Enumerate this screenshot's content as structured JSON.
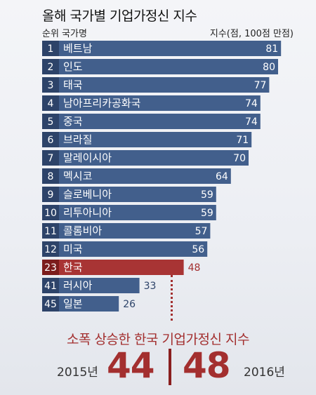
{
  "title": "올해 국가별 기업가정신 지수",
  "header": {
    "left": "순위 국가명",
    "right": "지수(점, 100점 만점)"
  },
  "colors": {
    "bar_default": "#425f8c",
    "bar_highlight": "#a83434",
    "rank_default": "#2d4369",
    "rank_highlight": "#7c1c1c",
    "value_dark": "#2d4369",
    "value_highlight": "#a32f2f"
  },
  "chart_data": {
    "type": "bar",
    "orientation": "horizontal",
    "categories": [
      "베트남",
      "인도",
      "태국",
      "남아프리카공화국",
      "중국",
      "브라질",
      "말레이시아",
      "멕시코",
      "슬로베니아",
      "리투아니아",
      "콜롬비아",
      "미국",
      "한국",
      "러시아",
      "일본"
    ],
    "ranks": [
      "1",
      "2",
      "3",
      "4",
      "5",
      "6",
      "7",
      "8",
      "9",
      "10",
      "11",
      "12",
      "23",
      "41",
      "45"
    ],
    "values": [
      81,
      80,
      77,
      74,
      74,
      71,
      70,
      64,
      59,
      59,
      57,
      56,
      48,
      33,
      26
    ],
    "highlight": "한국",
    "xlim": [
      0,
      100
    ]
  },
  "bottom": {
    "title": "소폭 상승한 한국 기업가정신 지수",
    "year_left": "2015년",
    "value_left": "44",
    "year_right": "2016년",
    "value_right": "48"
  }
}
